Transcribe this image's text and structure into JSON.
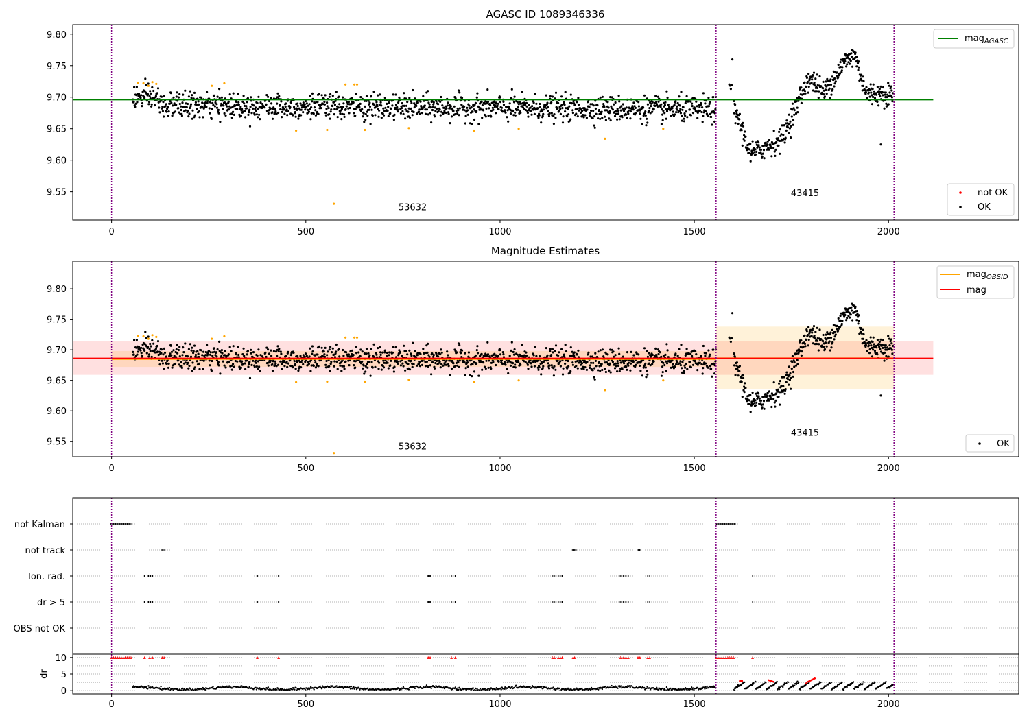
{
  "chart_data": [
    {
      "type": "scatter",
      "title": "AGASC ID 1089346336",
      "xlim": [
        -100,
        2335
      ],
      "ylim": [
        9.505,
        9.815
      ],
      "xticks": [
        0,
        500,
        1000,
        1500,
        2000
      ],
      "yticks": [
        9.55,
        9.6,
        9.65,
        9.7,
        9.75,
        9.8
      ],
      "grid": false,
      "legend_upper": {
        "position": "top-right",
        "entries": [
          {
            "label": "mag",
            "sub": "AGASC",
            "color": "#008000"
          }
        ]
      },
      "legend_lower": {
        "position": "bottom-right",
        "entries": [
          {
            "label": "not OK",
            "color": "#ff0000"
          },
          {
            "label": "OK",
            "color": "#000000"
          }
        ]
      },
      "hlines": [
        {
          "y": 9.696,
          "x0": -100,
          "x1": 2115,
          "color": "#008000"
        }
      ],
      "vlines": [
        0,
        1556,
        2014
      ],
      "annotations": [
        {
          "text": "53632",
          "x": 775,
          "y": 9.521
        },
        {
          "text": "43415",
          "x": 1785,
          "y": 9.543
        }
      ],
      "ok_points_count": 2000,
      "outlier_points": [
        [
          68,
          9.723
        ],
        [
          82,
          9.722
        ],
        [
          95,
          9.718
        ],
        [
          105,
          9.724
        ],
        [
          115,
          9.721
        ],
        [
          258,
          9.718
        ],
        [
          290,
          9.722
        ],
        [
          475,
          9.647
        ],
        [
          555,
          9.648
        ],
        [
          572,
          9.531
        ],
        [
          602,
          9.72
        ],
        [
          625,
          9.72
        ],
        [
          632,
          9.72
        ],
        [
          652,
          9.648
        ],
        [
          765,
          9.651
        ],
        [
          933,
          9.647
        ],
        [
          1048,
          9.65
        ],
        [
          1270,
          9.634
        ],
        [
          1420,
          9.65
        ]
      ],
      "outlier_color": "#ffa500"
    },
    {
      "type": "scatter",
      "title": "Magnitude Estimates",
      "xlim": [
        -100,
        2335
      ],
      "ylim": [
        9.525,
        9.845
      ],
      "xticks": [
        0,
        500,
        1000,
        1500,
        2000
      ],
      "yticks": [
        9.55,
        9.6,
        9.65,
        9.7,
        9.75,
        9.8
      ],
      "grid": false,
      "legend_upper": {
        "position": "top-right",
        "entries": [
          {
            "label": "mag",
            "sub": "OBSID",
            "color": "#ffa500"
          },
          {
            "label": "mag",
            "sub": "",
            "color": "#ff0000"
          }
        ]
      },
      "legend_lower": {
        "position": "bottom-right",
        "entries": [
          {
            "label": "OK",
            "color": "#000000"
          }
        ]
      },
      "mag": {
        "value": 9.686,
        "band": [
          9.659,
          9.714
        ],
        "x0": -100,
        "x1": 2115,
        "color": "#ff0000"
      },
      "mag_obsid": [
        {
          "x0": 0,
          "x1": 1556,
          "value": 9.685,
          "band": [
            9.672,
            9.698
          ]
        },
        {
          "x0": 1556,
          "x1": 2014,
          "value": 9.686,
          "band": [
            9.635,
            9.738
          ]
        }
      ],
      "vlines": [
        0,
        1556,
        2014
      ],
      "annotations": [
        {
          "text": "53632",
          "x": 775,
          "y": 9.537
        },
        {
          "text": "43415",
          "x": 1785,
          "y": 9.559
        }
      ]
    },
    {
      "type": "scatter",
      "title": "",
      "xlim": [
        -100,
        2335
      ],
      "ylabel": "",
      "categories": [
        "not Kalman",
        "not track",
        "Ion. rad.",
        "dr > 5",
        "OBS not OK"
      ],
      "grid": true,
      "vlines": [
        0,
        1556,
        2014
      ],
      "flags": {
        "not Kalman": [
          [
            0,
            50
          ],
          [
            1556,
            1605
          ]
        ],
        "not track": [
          [
            130,
            135
          ],
          [
            1188,
            1195
          ],
          [
            1355,
            1362
          ]
        ],
        "Ion. rad.": [
          85,
          95,
          100,
          105,
          375,
          430,
          815,
          820,
          875,
          885,
          1135,
          1140,
          1150,
          1155,
          1160,
          1310,
          1318,
          1324,
          1330,
          1380,
          1385,
          1650
        ],
        "dr > 5": [
          85,
          95,
          100,
          105,
          375,
          430,
          815,
          820,
          875,
          885,
          1135,
          1140,
          1150,
          1155,
          1160,
          1310,
          1318,
          1324,
          1330,
          1380,
          1385,
          1650
        ],
        "OBS not OK": []
      }
    },
    {
      "type": "line",
      "title": "",
      "ylabel": "dr",
      "xlim": [
        -100,
        2335
      ],
      "ylim": [
        -1,
        11
      ],
      "xticks": [
        0,
        500,
        1000,
        1500,
        2000
      ],
      "yticks": [
        0,
        5,
        10
      ],
      "grid": true,
      "vlines": [
        0,
        1556,
        2014
      ],
      "clipped_at_10": [
        [
          0,
          10
        ],
        [
          5,
          10
        ],
        [
          10,
          10
        ],
        [
          15,
          10
        ],
        [
          20,
          10
        ],
        [
          25,
          10
        ],
        [
          30,
          10
        ],
        [
          35,
          10
        ],
        [
          40,
          10
        ],
        [
          45,
          10
        ],
        [
          50,
          10
        ],
        [
          85,
          10
        ],
        [
          98,
          10
        ],
        [
          105,
          10
        ],
        [
          130,
          10
        ],
        [
          135,
          10
        ],
        [
          375,
          10
        ],
        [
          430,
          10
        ],
        [
          815,
          10
        ],
        [
          820,
          10
        ],
        [
          875,
          10
        ],
        [
          885,
          10
        ],
        [
          1135,
          10
        ],
        [
          1140,
          10
        ],
        [
          1150,
          10
        ],
        [
          1155,
          10
        ],
        [
          1160,
          10
        ],
        [
          1188,
          10
        ],
        [
          1192,
          10
        ],
        [
          1310,
          10
        ],
        [
          1318,
          10
        ],
        [
          1324,
          10
        ],
        [
          1330,
          10
        ],
        [
          1355,
          10
        ],
        [
          1360,
          10
        ],
        [
          1380,
          10
        ],
        [
          1385,
          10
        ],
        [
          1556,
          10
        ],
        [
          1561,
          10
        ],
        [
          1566,
          10
        ],
        [
          1571,
          10
        ],
        [
          1576,
          10
        ],
        [
          1581,
          10
        ],
        [
          1586,
          10
        ],
        [
          1591,
          10
        ],
        [
          1596,
          10
        ],
        [
          1601,
          10
        ],
        [
          1650,
          10
        ]
      ],
      "highlighted_segments": [
        [
          1615,
          1625,
          2.8,
          3.0
        ],
        [
          1690,
          1705,
          3.2,
          2.6
        ],
        [
          1785,
          1812,
          2.2,
          3.8
        ]
      ],
      "highlight_color": "#ff0000"
    }
  ],
  "labels": {
    "title1": "AGASC ID 1089346336",
    "title2": "Magnitude Estimates",
    "legend1_mag": "mag",
    "legend1_sub": "AGASC",
    "legend1_notok": "not OK",
    "legend1_ok": "OK",
    "legend2_obsid": "mag",
    "legend2_obsid_sub": "OBSID",
    "legend2_mag": "mag",
    "legend2_ok": "OK",
    "ann1a": "53632",
    "ann1b": "43415",
    "ann2a": "53632",
    "ann2b": "43415",
    "flag1": "not Kalman",
    "flag2": "not track",
    "flag3": "Ion. rad.",
    "flag4": "dr > 5",
    "flag5": "OBS not OK",
    "dr_label": "dr"
  }
}
